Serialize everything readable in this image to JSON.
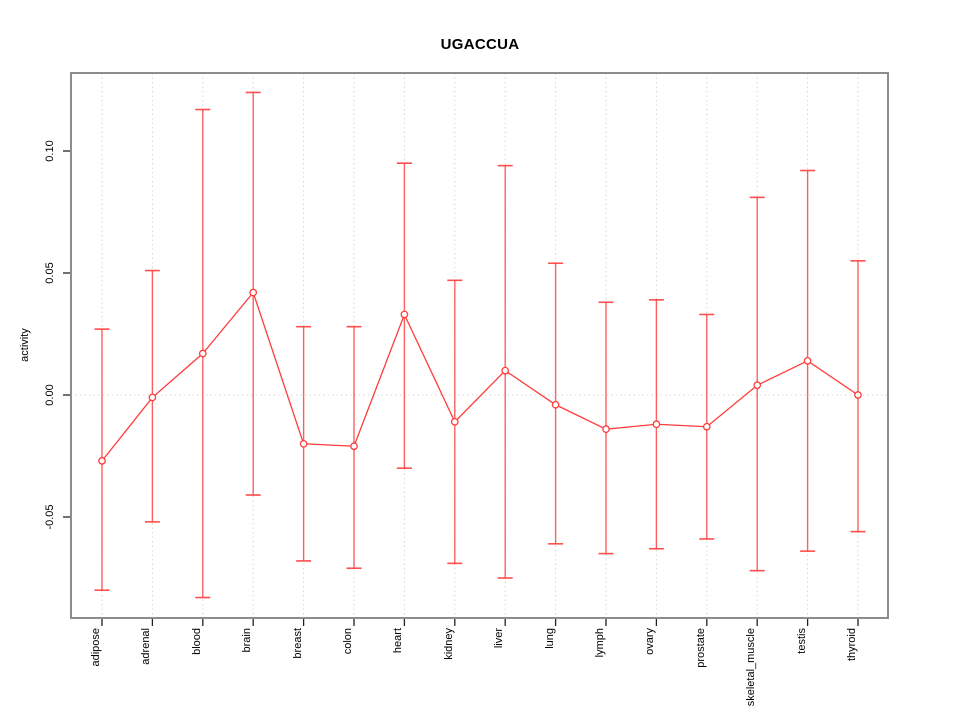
{
  "chart_data": {
    "type": "line",
    "subtype": "points-with-error-bars",
    "title": "UGACCUA",
    "xlabel": "",
    "ylabel": "activity",
    "categories": [
      "adipose",
      "adrenal",
      "blood",
      "brain",
      "breast",
      "colon",
      "heart",
      "kidney",
      "liver",
      "lung",
      "lymph",
      "ovary",
      "prostate",
      "skeletal_muscle",
      "testis",
      "thyroid"
    ],
    "values": [
      -0.027,
      -0.001,
      0.017,
      0.042,
      -0.02,
      -0.021,
      0.033,
      -0.011,
      0.01,
      -0.004,
      -0.014,
      -0.012,
      -0.013,
      0.004,
      0.014,
      0.0
    ],
    "upper": [
      0.027,
      0.051,
      0.117,
      0.124,
      0.028,
      0.028,
      0.095,
      0.047,
      0.094,
      0.054,
      0.038,
      0.039,
      0.033,
      0.081,
      0.092,
      0.055
    ],
    "lower": [
      -0.08,
      -0.052,
      -0.083,
      -0.041,
      -0.068,
      -0.071,
      -0.03,
      -0.069,
      -0.075,
      -0.061,
      -0.065,
      -0.063,
      -0.059,
      -0.072,
      -0.064,
      -0.056
    ],
    "y_ticks": [
      -0.05,
      0,
      0.05,
      0.1
    ],
    "y_tick_labels": [
      "-0.05",
      "0.00",
      "0.05",
      "0.10"
    ],
    "ylim": [
      -0.092,
      0.132
    ],
    "grid": "dotted vertical line at each category; dotted horizontal line at y=0",
    "legend": "none",
    "colors": {
      "series": "#ff3b3b",
      "grid": "#d6d6d6",
      "box": "#8c8c8c",
      "tick": "#222222",
      "text": "#000000"
    }
  }
}
